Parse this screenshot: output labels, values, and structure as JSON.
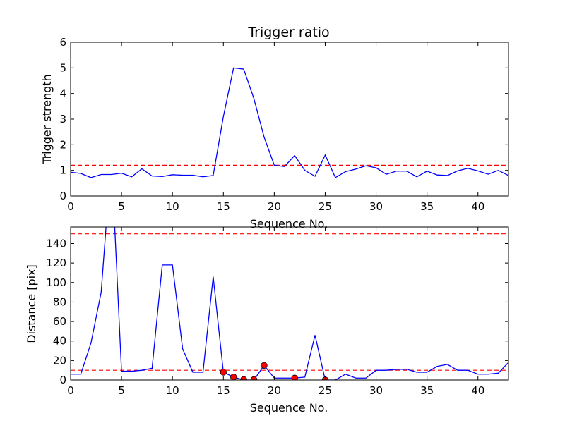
{
  "chart_data": [
    {
      "type": "line",
      "title": "Trigger ratio",
      "xlabel": "Sequence No.",
      "ylabel": "Trigger strength",
      "xlim": [
        0,
        43
      ],
      "ylim": [
        0,
        6
      ],
      "xticks": [
        0,
        5,
        10,
        15,
        20,
        25,
        30,
        35,
        40
      ],
      "yticks": [
        0,
        1,
        2,
        3,
        4,
        5,
        6
      ],
      "line_color": "#0000ff",
      "threshold": {
        "value": 1.2,
        "color": "#ff0000",
        "style": "dashed"
      },
      "series": [
        {
          "x": [
            0,
            1,
            2,
            3,
            4,
            5,
            6,
            7,
            8,
            9,
            10,
            11,
            12,
            13,
            14,
            15,
            16,
            17,
            18,
            19,
            20,
            21,
            22,
            23,
            24,
            25,
            26,
            27,
            28,
            29,
            30,
            31,
            32,
            33,
            34,
            35,
            36,
            37,
            38,
            39,
            40,
            41,
            42,
            43
          ],
          "y": [
            0.93,
            0.88,
            0.72,
            0.84,
            0.84,
            0.89,
            0.75,
            1.06,
            0.78,
            0.76,
            0.83,
            0.81,
            0.81,
            0.75,
            0.8,
            3.1,
            5.0,
            4.95,
            3.8,
            2.3,
            1.2,
            1.15,
            1.58,
            1.0,
            0.77,
            1.6,
            0.72,
            0.95,
            1.05,
            1.18,
            1.1,
            0.85,
            0.97,
            0.97,
            0.75,
            0.97,
            0.82,
            0.8,
            0.98,
            1.08,
            0.98,
            0.85,
            1.0,
            0.8
          ]
        }
      ],
      "grid": false
    },
    {
      "type": "line",
      "xlabel": "Sequence No.",
      "ylabel": "Distance [pix]",
      "xlim": [
        0,
        43
      ],
      "ylim": [
        0,
        157
      ],
      "xticks": [
        0,
        5,
        10,
        15,
        20,
        25,
        30,
        35,
        40
      ],
      "yticks": [
        0,
        20,
        40,
        60,
        80,
        100,
        120,
        140
      ],
      "line_color": "#0000ff",
      "thresholds": [
        {
          "value": 150,
          "color": "#ff0000",
          "style": "dashed"
        },
        {
          "value": 10,
          "color": "#ff0000",
          "style": "dashed"
        }
      ],
      "series": [
        {
          "x": [
            0,
            1,
            2,
            3,
            4,
            5,
            6,
            7,
            8,
            9,
            10,
            11,
            12,
            13,
            14,
            15,
            16,
            17,
            18,
            19,
            20,
            21,
            22,
            23,
            24,
            25,
            26,
            27,
            28,
            29,
            30,
            31,
            32,
            33,
            34,
            35,
            36,
            37,
            38,
            39,
            40,
            41,
            42,
            43
          ],
          "y": [
            6,
            6,
            38,
            90,
            230,
            9,
            9,
            10,
            12,
            118,
            118,
            32,
            8,
            8,
            106,
            8,
            3,
            0,
            0,
            15,
            2,
            2,
            2,
            3,
            46,
            0,
            0,
            6,
            2,
            2,
            10,
            10,
            11,
            11,
            8,
            8,
            14,
            16,
            10,
            10,
            6,
            6,
            7,
            18
          ]
        }
      ],
      "markers": {
        "color": "#ff0000",
        "points": [
          {
            "x": 15,
            "y": 8
          },
          {
            "x": 16,
            "y": 3
          },
          {
            "x": 17,
            "y": 0.5
          },
          {
            "x": 18,
            "y": 0.5
          },
          {
            "x": 19,
            "y": 15
          },
          {
            "x": 22,
            "y": 2
          },
          {
            "x": 25,
            "y": 0
          }
        ]
      },
      "grid": false
    }
  ]
}
